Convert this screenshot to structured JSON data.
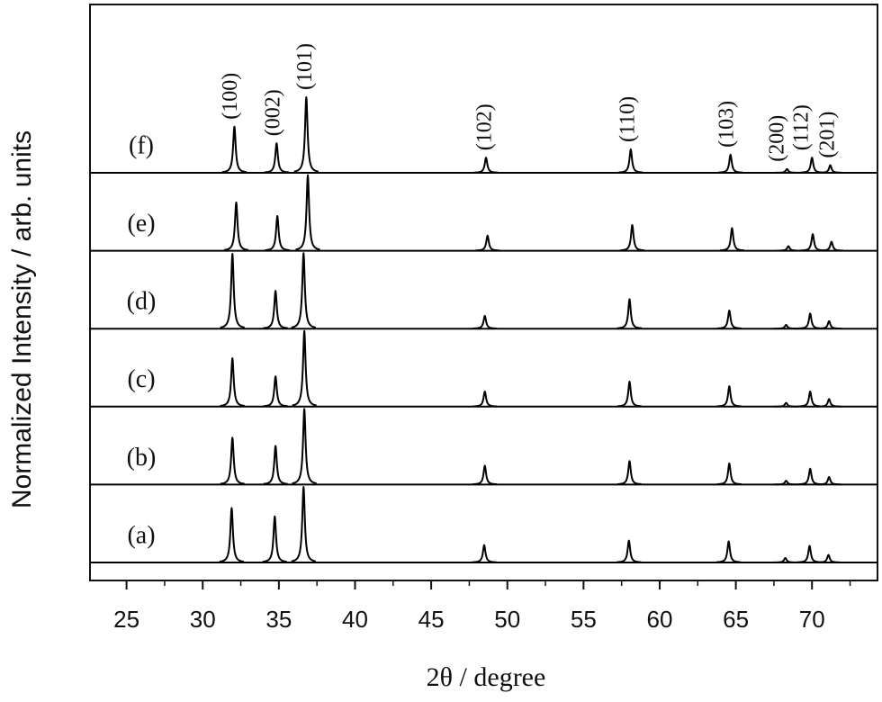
{
  "chart_data": {
    "type": "line",
    "x_label": "2θ  / degree",
    "y_label": "Normalized Intensity / arb. units",
    "xlim": [
      22.6,
      74.3
    ],
    "xticks": [
      25,
      30,
      35,
      40,
      45,
      50,
      55,
      60,
      65,
      70
    ],
    "xminorticks": [
      27.5,
      32.5,
      37.5,
      42.5,
      47.5,
      52.5,
      57.5,
      62.5,
      67.5,
      72.5
    ],
    "series": [
      {
        "name": "(a)",
        "color": "#000000",
        "x": [
          31.9,
          34.73,
          36.62,
          48.48,
          57.98,
          64.53,
          68.25,
          69.84,
          71.08
        ],
        "values": [
          0.72,
          0.61,
          1.0,
          0.23,
          0.29,
          0.28,
          0.06,
          0.22,
          0.1
        ]
      },
      {
        "name": "(b)",
        "color": "#000000",
        "x": [
          31.95,
          34.78,
          36.67,
          48.52,
          58.02,
          64.57,
          68.3,
          69.88,
          71.12
        ],
        "values": [
          0.62,
          0.51,
          1.0,
          0.25,
          0.31,
          0.28,
          0.05,
          0.21,
          0.1
        ]
      },
      {
        "name": "(c)",
        "color": "#000000",
        "x": [
          31.95,
          34.78,
          36.67,
          48.52,
          58.02,
          64.57,
          68.3,
          69.88,
          71.12
        ],
        "values": [
          0.64,
          0.4,
          1.0,
          0.2,
          0.33,
          0.27,
          0.05,
          0.2,
          0.1
        ]
      },
      {
        "name": "(d)",
        "color": "#000000",
        "x": [
          31.95,
          34.78,
          36.62,
          48.52,
          58.02,
          64.57,
          68.3,
          69.88,
          71.12
        ],
        "values": [
          0.99,
          0.5,
          1.0,
          0.17,
          0.39,
          0.24,
          0.05,
          0.2,
          0.1
        ]
      },
      {
        "name": "(e)",
        "color": "#000000",
        "x": [
          32.2,
          34.9,
          36.9,
          48.7,
          58.2,
          64.75,
          68.45,
          70.05,
          71.28
        ],
        "values": [
          0.64,
          0.46,
          1.0,
          0.2,
          0.34,
          0.3,
          0.06,
          0.22,
          0.12
        ]
      },
      {
        "name": "(f)",
        "color": "#000000",
        "x": [
          32.08,
          34.85,
          36.8,
          48.6,
          58.1,
          64.65,
          68.36,
          70.0,
          71.2
        ],
        "values": [
          0.61,
          0.39,
          1.0,
          0.2,
          0.31,
          0.24,
          0.05,
          0.2,
          0.1
        ]
      }
    ],
    "annotations": [
      {
        "text": "(100)",
        "x": 31.9
      },
      {
        "text": "(002)",
        "x": 34.7
      },
      {
        "text": "(101)",
        "x": 36.8
      },
      {
        "text": "(102)",
        "x": 48.6
      },
      {
        "text": "(110)",
        "x": 58.0
      },
      {
        "text": "(103)",
        "x": 64.5
      },
      {
        "text": "(200)",
        "x": 67.8
      },
      {
        "text": "(112)",
        "x": 69.4
      },
      {
        "text": "(201)",
        "x": 71.1
      }
    ]
  }
}
